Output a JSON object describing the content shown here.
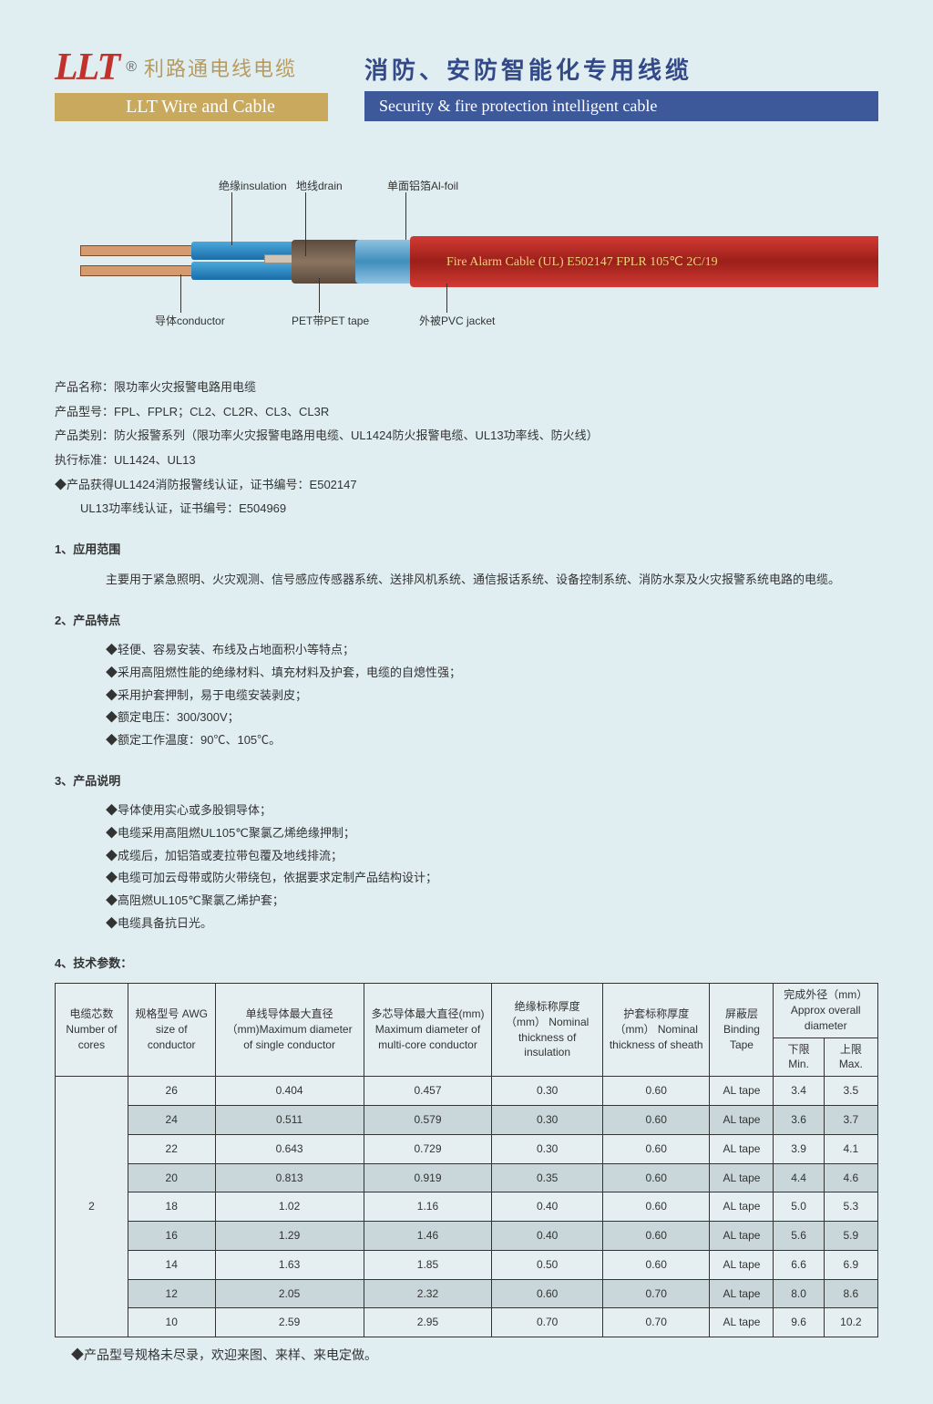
{
  "header": {
    "logo_text": "LLT",
    "reg": "®",
    "logo_cn": "利路通电线电缆",
    "logo_band_en": "LLT Wire and Cable",
    "title_cn": "消防、安防智能化专用线缆",
    "title_en": "Security & fire protection intelligent cable"
  },
  "diagram": {
    "cable_text": "Fire Alarm Cable  (UL) E502147 FPLR 105℃ 2C/19",
    "label_insulation": "绝缘insulation",
    "label_drain": "地线drain",
    "label_alfoil": "单面铝箔Al-foil",
    "label_conductor": "导体conductor",
    "label_pet": "PET带PET tape",
    "label_jacket": "外被PVC jacket"
  },
  "meta": {
    "l1": "产品名称：限功率火灾报警电路用电缆",
    "l2": "产品型号：FPL、FPLR；CL2、CL2R、CL3、CL3R",
    "l3": "产品类别：防火报警系列（限功率火灾报警电路用电缆、UL1424防火报警电缆、UL13功率线、防火线）",
    "l4": "执行标准：UL1424、UL13",
    "l5": "◆产品获得UL1424消防报警线认证，证书编号：E502147",
    "l6": "UL13功率线认证，证书编号：E504969"
  },
  "s1": {
    "h": "1、应用范围",
    "p": "主要用于紧急照明、火灾观测、信号感应传感器系统、送排风机系统、通信报话系统、设备控制系统、消防水泵及火灾报警系统电路的电缆。"
  },
  "s2": {
    "h": "2、产品特点",
    "b1": "◆轻便、容易安装、布线及占地面积小等特点；",
    "b2": "◆采用高阻燃性能的绝缘材料、填充材料及护套，电缆的自熄性强；",
    "b3": "◆采用护套押制，易于电缆安装剥皮；",
    "b4": "◆额定电压：300/300V；",
    "b5": "◆额定工作温度：90℃、105℃。"
  },
  "s3": {
    "h": "3、产品说明",
    "b1": "◆导体使用实心或多股铜导体；",
    "b2": "◆电缆采用高阻燃UL105℃聚氯乙烯绝缘押制；",
    "b3": "◆成缆后，加铝箔或麦拉带包覆及地线排流；",
    "b4": "◆电缆可加云母带或防火带绕包，依据要求定制产品结构设计；",
    "b5": "◆高阻燃UL105℃聚氯乙烯护套；",
    "b6": "◆电缆具备抗日光。"
  },
  "s4h": "4、技术参数：",
  "table": {
    "h_cores": "电缆芯数\nNumber of cores",
    "h_awg": "规格型号\nAWG size of conductor",
    "h_single": "单线导体最大直径（mm)Maximum diameter of single conductor",
    "h_multi": "多芯导体最大直径(mm)\nMaximum diameter of multi-core conductor",
    "h_insul": "绝缘标称厚度（mm）\nNominal thickness of insulation",
    "h_sheath": "护套标称厚度（mm）\nNominal thickness of sheath",
    "h_bind": "屏蔽层\nBinding Tape",
    "h_od": "完成外径（mm）\nApprox overall diameter",
    "h_min": "下限Min.",
    "h_max": "上限Max.",
    "cores": "2",
    "rows": [
      {
        "awg": "26",
        "d1": "0.404",
        "d2": "0.457",
        "ins": "0.30",
        "sh": "0.60",
        "bt": "AL tape",
        "min": "3.4",
        "max": "3.5",
        "alt": 0
      },
      {
        "awg": "24",
        "d1": "0.511",
        "d2": "0.579",
        "ins": "0.30",
        "sh": "0.60",
        "bt": "AL tape",
        "min": "3.6",
        "max": "3.7",
        "alt": 1
      },
      {
        "awg": "22",
        "d1": "0.643",
        "d2": "0.729",
        "ins": "0.30",
        "sh": "0.60",
        "bt": "AL tape",
        "min": "3.9",
        "max": "4.1",
        "alt": 0
      },
      {
        "awg": "20",
        "d1": "0.813",
        "d2": "0.919",
        "ins": "0.35",
        "sh": "0.60",
        "bt": "AL tape",
        "min": "4.4",
        "max": "4.6",
        "alt": 1
      },
      {
        "awg": "18",
        "d1": "1.02",
        "d2": "1.16",
        "ins": "0.40",
        "sh": "0.60",
        "bt": "AL tape",
        "min": "5.0",
        "max": "5.3",
        "alt": 0
      },
      {
        "awg": "16",
        "d1": "1.29",
        "d2": "1.46",
        "ins": "0.40",
        "sh": "0.60",
        "bt": "AL tape",
        "min": "5.6",
        "max": "5.9",
        "alt": 1
      },
      {
        "awg": "14",
        "d1": "1.63",
        "d2": "1.85",
        "ins": "0.50",
        "sh": "0.60",
        "bt": "AL tape",
        "min": "6.6",
        "max": "6.9",
        "alt": 0
      },
      {
        "awg": "12",
        "d1": "2.05",
        "d2": "2.32",
        "ins": "0.60",
        "sh": "0.70",
        "bt": "AL tape",
        "min": "8.0",
        "max": "8.6",
        "alt": 1
      },
      {
        "awg": "10",
        "d1": "2.59",
        "d2": "2.95",
        "ins": "0.70",
        "sh": "0.70",
        "bt": "AL tape",
        "min": "9.6",
        "max": "10.2",
        "alt": 0
      }
    ]
  },
  "footer": "◆产品型号规格未尽录，欢迎来图、来样、来电定做。",
  "colors": {
    "bg": "#e0eef2",
    "brand_red": "#c0322b",
    "gold": "#c8a95e",
    "navy": "#3e5999",
    "alt_row": "#c9d6da"
  }
}
